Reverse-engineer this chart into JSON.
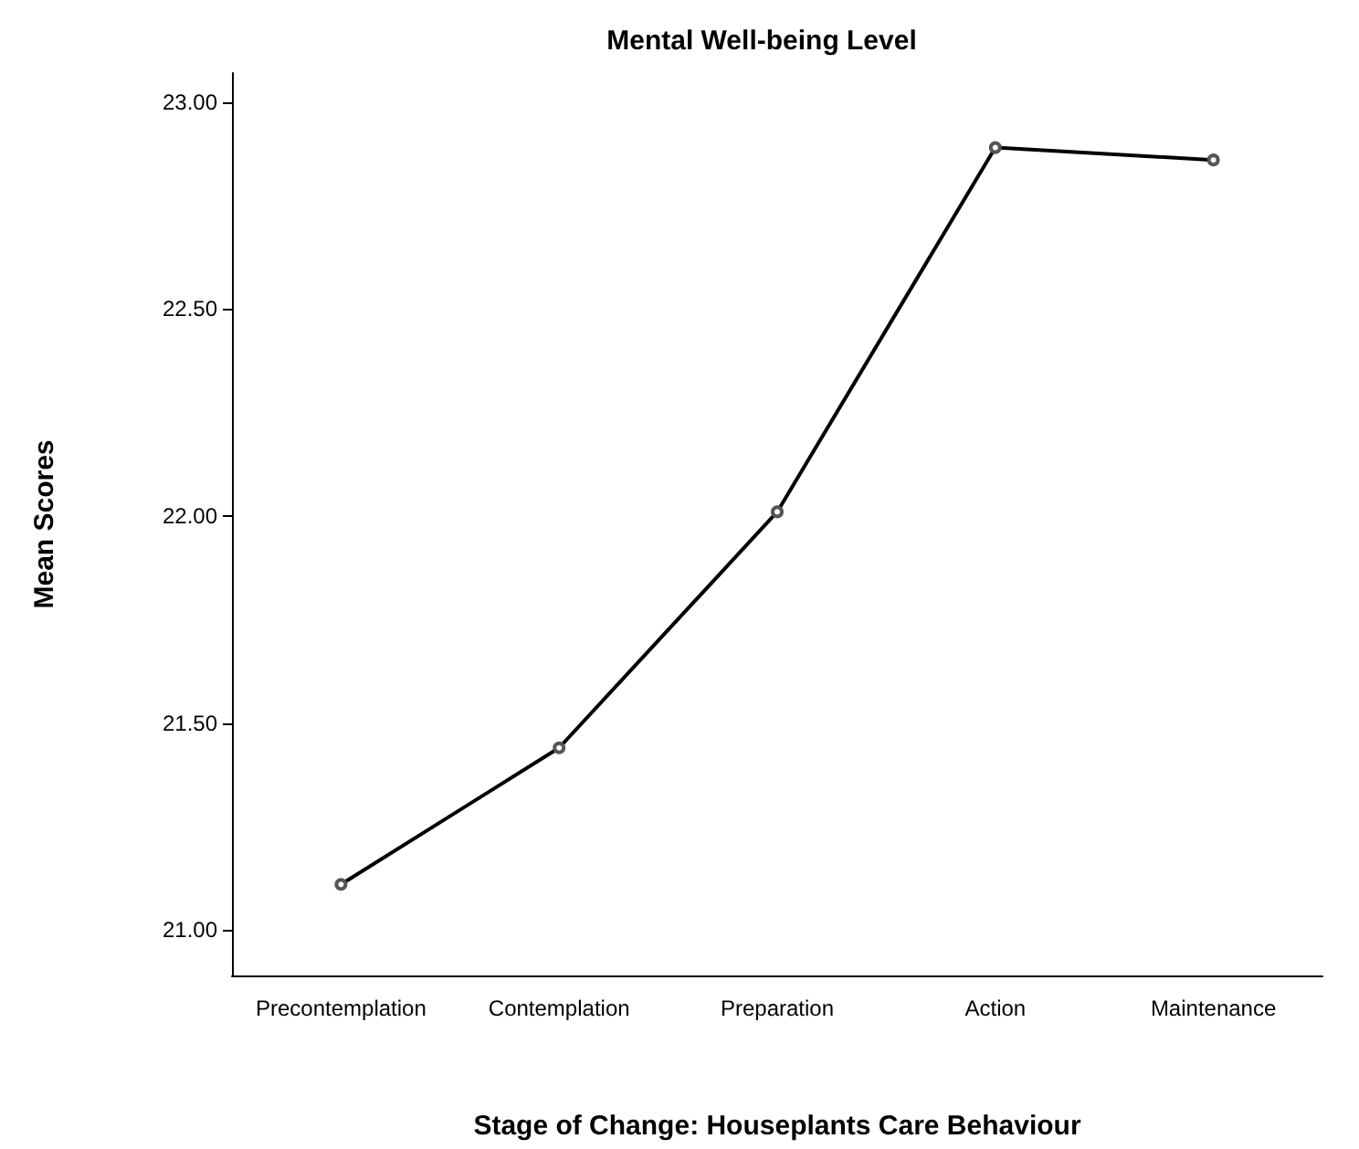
{
  "chart_data": {
    "type": "line",
    "title": "Mental Well-being Level",
    "xlabel": "Stage of Change: Houseplants Care Behaviour",
    "ylabel": "Mean Scores",
    "categories": [
      "Precontemplation",
      "Contemplation",
      "Preparation",
      "Action",
      "Maintenance"
    ],
    "series": [
      {
        "color": "#000000",
        "values": [
          21.11,
          21.44,
          22.01,
          22.89,
          22.86
        ]
      }
    ],
    "ylim": [
      20.89,
      23.07
    ],
    "yticks": [
      {
        "value": 21,
        "label": "21.00"
      },
      {
        "value": 21.5,
        "label": "21.50"
      },
      {
        "value": 22,
        "label": "22.00"
      },
      {
        "value": 22.5,
        "label": "22.50"
      },
      {
        "value": 23,
        "label": "23.00"
      }
    ],
    "grid": false,
    "marker": "circle",
    "line_style": "solid"
  }
}
